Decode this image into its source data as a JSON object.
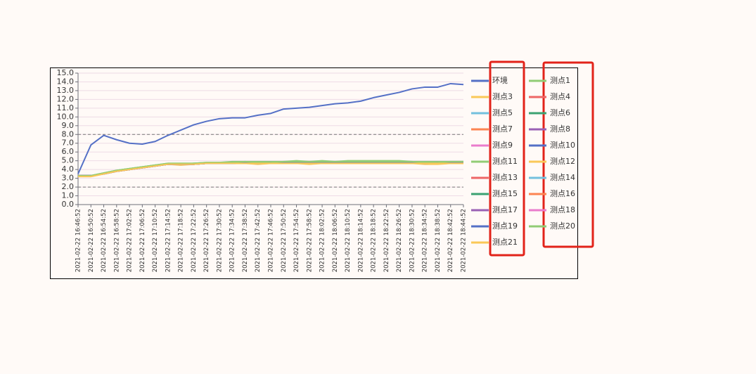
{
  "chart_data": {
    "type": "line",
    "categories": [
      "2021-02-22 16:46:52",
      "2021-02-22 16:50:52",
      "2021-02-22 16:54:52",
      "2021-02-22 16:58:52",
      "2021-02-22 17:02:52",
      "2021-02-22 17:06:52",
      "2021-02-22 17:10:52",
      "2021-02-22 17:14:52",
      "2021-02-22 17:18:52",
      "2021-02-22 17:22:52",
      "2021-02-22 17:26:52",
      "2021-02-22 17:30:52",
      "2021-02-22 17:34:52",
      "2021-02-22 17:38:52",
      "2021-02-22 17:42:52",
      "2021-02-22 17:46:52",
      "2021-02-22 17:50:52",
      "2021-02-22 17:54:52",
      "2021-02-22 17:58:52",
      "2021-02-22 18:02:52",
      "2021-02-22 18:06:52",
      "2021-02-22 18:10:52",
      "2021-02-22 18:14:52",
      "2021-02-22 18:18:52",
      "2021-02-22 18:22:52",
      "2021-02-22 18:26:52",
      "2021-02-22 18:30:52",
      "2021-02-22 18:34:52",
      "2021-02-22 18:38:52",
      "2021-02-22 18:42:52",
      "2021-02-22 18:44:52"
    ],
    "ylim": [
      0,
      15
    ],
    "yticks": [
      {
        "value": 0,
        "label": "0.0"
      },
      {
        "value": 1,
        "label": "1.0"
      },
      {
        "value": 2,
        "label": "2.0"
      },
      {
        "value": 3,
        "label": "3.0"
      },
      {
        "value": 4,
        "label": "4.0"
      },
      {
        "value": 5,
        "label": "5.0"
      },
      {
        "value": 6,
        "label": "6.0"
      },
      {
        "value": 7,
        "label": "7.0"
      },
      {
        "value": 8,
        "label": "8.0"
      },
      {
        "value": 9,
        "label": "9.0"
      },
      {
        "value": 10,
        "label": "10.0"
      },
      {
        "value": 11,
        "label": "11.0"
      },
      {
        "value": 12,
        "label": "12.0"
      },
      {
        "value": 13,
        "label": "13.0"
      },
      {
        "value": 14,
        "label": "14.0"
      },
      {
        "value": 15,
        "label": "15.0"
      }
    ],
    "grid": true,
    "mark_lines": [
      2,
      8
    ],
    "legend": "right",
    "series": [
      {
        "name": "环境",
        "color": "#5470c6",
        "values": [
          3.5,
          6.8,
          7.9,
          7.4,
          7.0,
          6.9,
          7.2,
          7.9,
          8.5,
          9.1,
          9.5,
          9.8,
          9.9,
          9.9,
          10.2,
          10.4,
          10.9,
          11.0,
          11.1,
          11.3,
          11.5,
          11.6,
          11.8,
          12.2,
          12.5,
          12.8,
          13.2,
          13.4,
          13.4,
          13.8,
          13.7
        ]
      },
      {
        "name": "测点1",
        "color": "#91cc75",
        "values": [
          3.3,
          3.3,
          3.6,
          3.9,
          4.1,
          4.3,
          4.5,
          4.7,
          4.7,
          4.7,
          4.8,
          4.8,
          4.9,
          4.9,
          4.9,
          4.9,
          4.9,
          5.0,
          4.9,
          5.0,
          4.9,
          5.0,
          5.0,
          5.0,
          5.0,
          5.0,
          4.9,
          4.9,
          4.9,
          4.9,
          4.9
        ]
      },
      {
        "name": "测点3",
        "color": "#fac858",
        "values": [
          3.2,
          3.2,
          3.5,
          3.8,
          4.0,
          4.2,
          4.4,
          4.6,
          4.5,
          4.6,
          4.7,
          4.7,
          4.7,
          4.7,
          4.6,
          4.7,
          4.7,
          4.7,
          4.6,
          4.7,
          4.7,
          4.7,
          4.7,
          4.7,
          4.7,
          4.7,
          4.7,
          4.6,
          4.6,
          4.7,
          4.7
        ]
      },
      {
        "name": "测点4",
        "color": "#ee6666",
        "values": [
          3.3,
          3.3,
          3.5,
          3.8,
          4.0,
          4.2,
          4.4,
          4.6,
          4.6,
          4.6,
          4.7,
          4.7,
          4.7,
          4.8,
          4.7,
          4.8,
          4.8,
          4.8,
          4.8,
          4.8,
          4.8,
          4.8,
          4.8,
          4.8,
          4.8,
          4.8,
          4.8,
          4.7,
          4.8,
          4.8,
          4.8
        ]
      },
      {
        "name": "测点5",
        "color": "#73c0de",
        "values": [
          3.3,
          3.3,
          3.5,
          3.8,
          4.0,
          4.2,
          4.4,
          4.6,
          4.6,
          4.6,
          4.7,
          4.7,
          4.7,
          4.8,
          4.7,
          4.8,
          4.8,
          4.8,
          4.8,
          4.8,
          4.8,
          4.8,
          4.8,
          4.8,
          4.8,
          4.8,
          4.8,
          4.7,
          4.8,
          4.8,
          4.8
        ]
      },
      {
        "name": "测点6",
        "color": "#3ba272",
        "values": [
          3.3,
          3.3,
          3.5,
          3.8,
          4.0,
          4.2,
          4.4,
          4.6,
          4.6,
          4.7,
          4.7,
          4.7,
          4.8,
          4.8,
          4.8,
          4.8,
          4.8,
          4.8,
          4.8,
          4.8,
          4.8,
          4.8,
          4.8,
          4.8,
          4.8,
          4.8,
          4.8,
          4.8,
          4.8,
          4.8,
          4.8
        ]
      },
      {
        "name": "测点7",
        "color": "#fc8452",
        "values": [
          3.3,
          3.3,
          3.5,
          3.8,
          4.0,
          4.2,
          4.4,
          4.6,
          4.6,
          4.6,
          4.7,
          4.7,
          4.7,
          4.8,
          4.7,
          4.8,
          4.8,
          4.8,
          4.8,
          4.8,
          4.8,
          4.8,
          4.8,
          4.8,
          4.8,
          4.8,
          4.8,
          4.7,
          4.8,
          4.8,
          4.8
        ]
      },
      {
        "name": "测点8",
        "color": "#9a60b4",
        "values": [
          3.3,
          3.3,
          3.5,
          3.8,
          4.0,
          4.2,
          4.4,
          4.6,
          4.6,
          4.6,
          4.7,
          4.7,
          4.7,
          4.8,
          4.7,
          4.8,
          4.8,
          4.8,
          4.8,
          4.8,
          4.8,
          4.8,
          4.8,
          4.8,
          4.8,
          4.8,
          4.8,
          4.7,
          4.8,
          4.8,
          4.8
        ]
      },
      {
        "name": "测点9",
        "color": "#ea7ccc",
        "values": [
          3.3,
          3.3,
          3.5,
          3.8,
          4.0,
          4.2,
          4.4,
          4.6,
          4.6,
          4.6,
          4.7,
          4.7,
          4.7,
          4.8,
          4.7,
          4.8,
          4.8,
          4.8,
          4.8,
          4.8,
          4.8,
          4.8,
          4.8,
          4.8,
          4.8,
          4.8,
          4.8,
          4.7,
          4.8,
          4.8,
          4.8
        ]
      },
      {
        "name": "测点10",
        "color": "#5470c6",
        "values": [
          3.3,
          3.3,
          3.5,
          3.8,
          4.0,
          4.2,
          4.4,
          4.6,
          4.6,
          4.6,
          4.7,
          4.7,
          4.7,
          4.8,
          4.7,
          4.8,
          4.8,
          4.8,
          4.8,
          4.8,
          4.8,
          4.8,
          4.8,
          4.8,
          4.8,
          4.8,
          4.8,
          4.7,
          4.8,
          4.8,
          4.8
        ]
      },
      {
        "name": "测点11",
        "color": "#91cc75",
        "values": [
          3.3,
          3.3,
          3.6,
          3.9,
          4.1,
          4.3,
          4.5,
          4.6,
          4.6,
          4.7,
          4.7,
          4.8,
          4.8,
          4.8,
          4.8,
          4.8,
          4.8,
          4.9,
          4.8,
          4.9,
          4.8,
          4.9,
          4.9,
          4.9,
          4.9,
          4.9,
          4.8,
          4.8,
          4.8,
          4.8,
          4.8
        ]
      },
      {
        "name": "测点12",
        "color": "#fac858",
        "values": [
          3.3,
          3.3,
          3.5,
          3.8,
          4.0,
          4.2,
          4.4,
          4.6,
          4.6,
          4.6,
          4.7,
          4.7,
          4.7,
          4.7,
          4.7,
          4.7,
          4.7,
          4.7,
          4.7,
          4.7,
          4.7,
          4.7,
          4.7,
          4.7,
          4.7,
          4.7,
          4.7,
          4.7,
          4.7,
          4.7,
          4.7
        ]
      },
      {
        "name": "测点13",
        "color": "#ee6666",
        "values": [
          3.3,
          3.3,
          3.5,
          3.8,
          4.0,
          4.2,
          4.4,
          4.6,
          4.6,
          4.6,
          4.7,
          4.7,
          4.7,
          4.8,
          4.7,
          4.8,
          4.8,
          4.8,
          4.8,
          4.8,
          4.8,
          4.8,
          4.8,
          4.8,
          4.8,
          4.8,
          4.8,
          4.7,
          4.8,
          4.8,
          4.8
        ]
      },
      {
        "name": "测点14",
        "color": "#73c0de",
        "values": [
          3.3,
          3.3,
          3.5,
          3.8,
          4.0,
          4.2,
          4.4,
          4.6,
          4.6,
          4.6,
          4.7,
          4.7,
          4.7,
          4.8,
          4.7,
          4.8,
          4.8,
          4.8,
          4.8,
          4.8,
          4.8,
          4.8,
          4.8,
          4.8,
          4.8,
          4.8,
          4.8,
          4.7,
          4.8,
          4.8,
          4.8
        ]
      },
      {
        "name": "测点15",
        "color": "#3ba272",
        "values": [
          3.3,
          3.3,
          3.5,
          3.8,
          4.0,
          4.2,
          4.4,
          4.6,
          4.6,
          4.6,
          4.7,
          4.7,
          4.7,
          4.8,
          4.7,
          4.8,
          4.8,
          4.8,
          4.8,
          4.8,
          4.8,
          4.8,
          4.8,
          4.8,
          4.8,
          4.8,
          4.8,
          4.7,
          4.8,
          4.8,
          4.8
        ]
      },
      {
        "name": "测点16",
        "color": "#fc8452",
        "values": [
          3.3,
          3.3,
          3.5,
          3.8,
          4.0,
          4.2,
          4.4,
          4.6,
          4.6,
          4.6,
          4.7,
          4.7,
          4.7,
          4.8,
          4.7,
          4.8,
          4.8,
          4.8,
          4.8,
          4.8,
          4.8,
          4.8,
          4.8,
          4.8,
          4.8,
          4.8,
          4.8,
          4.7,
          4.8,
          4.8,
          4.8
        ]
      },
      {
        "name": "测点17",
        "color": "#9a60b4",
        "values": [
          3.3,
          3.3,
          3.5,
          3.8,
          4.0,
          4.2,
          4.4,
          4.6,
          4.6,
          4.6,
          4.7,
          4.7,
          4.7,
          4.8,
          4.7,
          4.8,
          4.8,
          4.8,
          4.8,
          4.8,
          4.8,
          4.8,
          4.8,
          4.8,
          4.8,
          4.8,
          4.8,
          4.7,
          4.8,
          4.8,
          4.8
        ]
      },
      {
        "name": "测点18",
        "color": "#ea7ccc",
        "values": [
          3.3,
          3.3,
          3.5,
          3.8,
          4.0,
          4.2,
          4.4,
          4.6,
          4.6,
          4.6,
          4.7,
          4.7,
          4.7,
          4.8,
          4.7,
          4.8,
          4.8,
          4.8,
          4.8,
          4.8,
          4.8,
          4.8,
          4.8,
          4.8,
          4.8,
          4.8,
          4.8,
          4.7,
          4.8,
          4.8,
          4.8
        ]
      },
      {
        "name": "测点19",
        "color": "#5470c6",
        "values": [
          3.3,
          3.3,
          3.5,
          3.8,
          4.0,
          4.2,
          4.4,
          4.6,
          4.6,
          4.6,
          4.7,
          4.7,
          4.7,
          4.8,
          4.7,
          4.8,
          4.8,
          4.8,
          4.8,
          4.8,
          4.8,
          4.8,
          4.8,
          4.8,
          4.8,
          4.8,
          4.8,
          4.7,
          4.8,
          4.8,
          4.8
        ]
      },
      {
        "name": "测点20",
        "color": "#91cc75",
        "values": [
          3.3,
          3.3,
          3.6,
          3.9,
          4.1,
          4.3,
          4.5,
          4.7,
          4.7,
          4.7,
          4.8,
          4.8,
          4.8,
          4.9,
          4.8,
          4.8,
          4.9,
          4.9,
          4.9,
          4.9,
          4.9,
          4.9,
          4.9,
          4.9,
          4.9,
          4.9,
          4.9,
          4.8,
          4.8,
          4.9,
          4.9
        ]
      },
      {
        "name": "测点21",
        "color": "#fac858",
        "values": [
          3.2,
          3.2,
          3.5,
          3.8,
          4.0,
          4.2,
          4.4,
          4.6,
          4.6,
          4.6,
          4.7,
          4.7,
          4.7,
          4.7,
          4.7,
          4.7,
          4.7,
          4.7,
          4.7,
          4.7,
          4.7,
          4.7,
          4.7,
          4.7,
          4.7,
          4.7,
          4.7,
          4.7,
          4.7,
          4.7,
          4.7
        ]
      }
    ]
  }
}
